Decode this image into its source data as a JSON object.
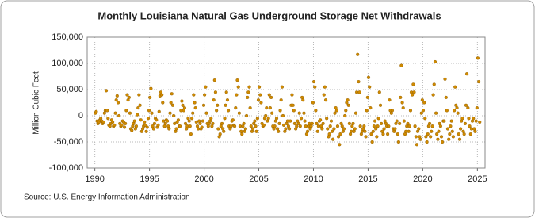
{
  "chart_data": {
    "type": "scatter",
    "title": "Monthly Louisiana Natural Gas Underground Storage Net Withdrawals",
    "y_label": "Million Cubic Feet",
    "source": "Source: U.S. Energy Information Administration",
    "xlim": [
      1989.3,
      2025.7
    ],
    "xticks": [
      1990,
      1995,
      2000,
      2005,
      2010,
      2015,
      2020,
      2025
    ],
    "ylim": [
      -100000,
      150000
    ],
    "yticks": [
      {
        "value": -100000,
        "label": "-100,000"
      },
      {
        "value": -50000,
        "label": "-50,000"
      },
      {
        "value": 0,
        "label": "0"
      },
      {
        "value": 50000,
        "label": "50,000"
      },
      {
        "value": 100000,
        "label": "100,000"
      },
      {
        "value": 150000,
        "label": "150,000"
      }
    ],
    "grid": true,
    "x": [
      1990.04,
      1990.13,
      1990.21,
      1990.29,
      1990.38,
      1990.46,
      1990.54,
      1990.63,
      1990.71,
      1990.79,
      1990.88,
      1990.96,
      1991.04,
      1991.13,
      1991.21,
      1991.29,
      1991.38,
      1991.46,
      1991.54,
      1991.63,
      1991.71,
      1991.79,
      1991.88,
      1991.96,
      1992.04,
      1992.13,
      1992.21,
      1992.29,
      1992.38,
      1992.46,
      1992.54,
      1992.63,
      1992.71,
      1992.79,
      1992.88,
      1992.96,
      1993.04,
      1993.13,
      1993.21,
      1993.29,
      1993.38,
      1993.46,
      1993.54,
      1993.63,
      1993.71,
      1993.79,
      1993.88,
      1993.96,
      1994.04,
      1994.13,
      1994.21,
      1994.29,
      1994.38,
      1994.46,
      1994.54,
      1994.63,
      1994.71,
      1994.79,
      1994.88,
      1994.96,
      1995.04,
      1995.13,
      1995.21,
      1995.29,
      1995.38,
      1995.46,
      1995.54,
      1995.63,
      1995.71,
      1995.79,
      1995.88,
      1995.96,
      1996.04,
      1996.13,
      1996.21,
      1996.29,
      1996.38,
      1996.46,
      1996.54,
      1996.63,
      1996.71,
      1996.79,
      1996.88,
      1996.96,
      1997.04,
      1997.13,
      1997.21,
      1997.29,
      1997.38,
      1997.46,
      1997.54,
      1997.63,
      1997.71,
      1997.79,
      1997.88,
      1997.96,
      1998.04,
      1998.13,
      1998.21,
      1998.29,
      1998.38,
      1998.46,
      1998.54,
      1998.63,
      1998.71,
      1998.79,
      1998.88,
      1998.96,
      1999.04,
      1999.13,
      1999.21,
      1999.29,
      1999.38,
      1999.46,
      1999.54,
      1999.63,
      1999.71,
      1999.79,
      1999.88,
      1999.96,
      2000.04,
      2000.13,
      2000.21,
      2000.29,
      2000.38,
      2000.46,
      2000.54,
      2000.63,
      2000.71,
      2000.79,
      2000.88,
      2000.96,
      2001.04,
      2001.13,
      2001.21,
      2001.29,
      2001.38,
      2001.46,
      2001.54,
      2001.63,
      2001.71,
      2001.79,
      2001.88,
      2001.96,
      2002.04,
      2002.13,
      2002.21,
      2002.29,
      2002.38,
      2002.46,
      2002.54,
      2002.63,
      2002.71,
      2002.79,
      2002.88,
      2002.96,
      2003.04,
      2003.13,
      2003.21,
      2003.29,
      2003.38,
      2003.46,
      2003.54,
      2003.63,
      2003.71,
      2003.79,
      2003.88,
      2003.96,
      2004.04,
      2004.13,
      2004.21,
      2004.29,
      2004.38,
      2004.46,
      2004.54,
      2004.63,
      2004.71,
      2004.79,
      2004.88,
      2004.96,
      2005.04,
      2005.13,
      2005.21,
      2005.29,
      2005.38,
      2005.46,
      2005.54,
      2005.63,
      2005.71,
      2005.79,
      2005.88,
      2005.96,
      2006.04,
      2006.13,
      2006.21,
      2006.29,
      2006.38,
      2006.46,
      2006.54,
      2006.63,
      2006.71,
      2006.79,
      2006.88,
      2006.96,
      2007.04,
      2007.13,
      2007.21,
      2007.29,
      2007.38,
      2007.46,
      2007.54,
      2007.63,
      2007.71,
      2007.79,
      2007.88,
      2007.96,
      2008.04,
      2008.13,
      2008.21,
      2008.29,
      2008.38,
      2008.46,
      2008.54,
      2008.63,
      2008.71,
      2008.79,
      2008.88,
      2008.96,
      2009.04,
      2009.13,
      2009.21,
      2009.29,
      2009.38,
      2009.46,
      2009.54,
      2009.63,
      2009.71,
      2009.79,
      2009.88,
      2009.96,
      2010.04,
      2010.13,
      2010.21,
      2010.29,
      2010.38,
      2010.46,
      2010.54,
      2010.63,
      2010.71,
      2010.79,
      2010.88,
      2010.96,
      2011.04,
      2011.13,
      2011.21,
      2011.29,
      2011.38,
      2011.46,
      2011.54,
      2011.63,
      2011.71,
      2011.79,
      2011.88,
      2011.96,
      2012.04,
      2012.13,
      2012.21,
      2012.29,
      2012.38,
      2012.46,
      2012.54,
      2012.63,
      2012.71,
      2012.79,
      2012.88,
      2012.96,
      2013.04,
      2013.13,
      2013.21,
      2013.29,
      2013.38,
      2013.46,
      2013.54,
      2013.63,
      2013.71,
      2013.79,
      2013.88,
      2013.96,
      2014.04,
      2014.13,
      2014.21,
      2014.29,
      2014.38,
      2014.46,
      2014.54,
      2014.63,
      2014.71,
      2014.79,
      2014.88,
      2014.96,
      2015.04,
      2015.13,
      2015.21,
      2015.29,
      2015.38,
      2015.46,
      2015.54,
      2015.63,
      2015.71,
      2015.79,
      2015.88,
      2015.96,
      2016.04,
      2016.13,
      2016.21,
      2016.29,
      2016.38,
      2016.46,
      2016.54,
      2016.63,
      2016.71,
      2016.79,
      2016.88,
      2016.96,
      2017.04,
      2017.13,
      2017.21,
      2017.29,
      2017.38,
      2017.46,
      2017.54,
      2017.63,
      2017.71,
      2017.79,
      2017.88,
      2017.96,
      2018.04,
      2018.13,
      2018.21,
      2018.29,
      2018.38,
      2018.46,
      2018.54,
      2018.63,
      2018.71,
      2018.79,
      2018.88,
      2018.96,
      2019.04,
      2019.13,
      2019.21,
      2019.29,
      2019.38,
      2019.46,
      2019.54,
      2019.63,
      2019.71,
      2019.79,
      2019.88,
      2019.96,
      2020.04,
      2020.13,
      2020.21,
      2020.29,
      2020.38,
      2020.46,
      2020.54,
      2020.63,
      2020.71,
      2020.79,
      2020.88,
      2020.96,
      2021.04,
      2021.13,
      2021.21,
      2021.29,
      2021.38,
      2021.46,
      2021.54,
      2021.63,
      2021.71,
      2021.79,
      2021.88,
      2021.96,
      2022.04,
      2022.13,
      2022.21,
      2022.29,
      2022.38,
      2022.46,
      2022.54,
      2022.63,
      2022.71,
      2022.79,
      2022.88,
      2022.96,
      2023.04,
      2023.13,
      2023.21,
      2023.29,
      2023.38,
      2023.46,
      2023.54,
      2023.63,
      2023.71,
      2023.79,
      2023.88,
      2023.96,
      2024.04,
      2024.13,
      2024.21,
      2024.29,
      2024.38,
      2024.46,
      2024.54,
      2024.63,
      2024.71,
      2024.79,
      2024.88,
      2024.96,
      2025.04,
      2025.13,
      2025.21
    ],
    "series": [
      {
        "color": "#d08a00",
        "values": [
          5000,
          8000,
          -10000,
          -15000,
          -12000,
          -8000,
          -5000,
          -10000,
          -15000,
          -12000,
          5000,
          10000,
          48000,
          10000,
          -5000,
          -18000,
          -20000,
          -15000,
          -8000,
          -12000,
          -20000,
          -18000,
          5000,
          30000,
          38000,
          25000,
          0,
          -15000,
          -20000,
          -18000,
          -10000,
          -12000,
          -22000,
          -15000,
          10000,
          40000,
          30000,
          35000,
          5000,
          -25000,
          -28000,
          -20000,
          -15000,
          -10000,
          -25000,
          -20000,
          2000,
          15000,
          40000,
          20000,
          -8000,
          -30000,
          -25000,
          -20000,
          -12000,
          -18000,
          -30000,
          -22000,
          -5000,
          10000,
          35000,
          52000,
          5000,
          -20000,
          -25000,
          -15000,
          -5000,
          -8000,
          -22000,
          -18000,
          8000,
          38000,
          45000,
          40000,
          25000,
          -10000,
          -20000,
          -15000,
          -8000,
          -10000,
          -20000,
          -25000,
          5000,
          25000,
          42000,
          20000,
          0,
          -15000,
          -30000,
          -25000,
          -12000,
          -8000,
          -20000,
          -20000,
          10000,
          28000,
          20000,
          10000,
          15000,
          -15000,
          -25000,
          -20000,
          -5000,
          -10000,
          -20000,
          -35000,
          -5000,
          5000,
          40000,
          25000,
          15000,
          -12000,
          -20000,
          -25000,
          -10000,
          -15000,
          -25000,
          -22000,
          -10000,
          20000,
          40000,
          55000,
          5000,
          -15000,
          -20000,
          -15000,
          -10000,
          -5000,
          -20000,
          -15000,
          30000,
          68000,
          45000,
          10000,
          20000,
          -25000,
          -40000,
          -35000,
          -20000,
          -15000,
          -25000,
          -30000,
          -5000,
          20000,
          45000,
          30000,
          10000,
          -20000,
          -25000,
          -20000,
          -10000,
          -8000,
          -18000,
          -20000,
          15000,
          40000,
          68000,
          55000,
          5000,
          -20000,
          -30000,
          -35000,
          -20000,
          -15000,
          -30000,
          -25000,
          0,
          35000,
          45000,
          55000,
          15000,
          -20000,
          -30000,
          -25000,
          -15000,
          -10000,
          -20000,
          -30000,
          -5000,
          30000,
          55000,
          40000,
          25000,
          -15000,
          -20000,
          -18000,
          -5000,
          0,
          15000,
          -10000,
          -5000,
          40000,
          15000,
          35000,
          5000,
          -20000,
          -25000,
          -20000,
          -10000,
          -5000,
          -25000,
          -30000,
          -15000,
          10000,
          30000,
          55000,
          0,
          -18000,
          -30000,
          -25000,
          -15000,
          -10000,
          -20000,
          -25000,
          -10000,
          20000,
          40000,
          20000,
          10000,
          -15000,
          -25000,
          -20000,
          -10000,
          -15000,
          5000,
          -20000,
          -5000,
          35000,
          30000,
          5000,
          -10000,
          -20000,
          -35000,
          -30000,
          -20000,
          -15000,
          -25000,
          -20000,
          -15000,
          25000,
          65000,
          55000,
          10000,
          -15000,
          -30000,
          -20000,
          -10000,
          -8000,
          -20000,
          -25000,
          -15000,
          40000,
          55000,
          30000,
          -5000,
          -25000,
          -40000,
          -35000,
          -20000,
          -10000,
          -30000,
          -45000,
          -25000,
          5000,
          15000,
          10000,
          -20000,
          -40000,
          -55000,
          -35000,
          -15000,
          -20000,
          -30000,
          -25000,
          0,
          10000,
          25000,
          30000,
          20000,
          -15000,
          -35000,
          -30000,
          -20000,
          -15000,
          -30000,
          -25000,
          5000,
          45000,
          117000,
          65000,
          45000,
          -20000,
          -35000,
          -30000,
          -25000,
          -20000,
          -30000,
          -40000,
          10000,
          35000,
          73000,
          55000,
          15000,
          -35000,
          -50000,
          -30000,
          -20000,
          -10000,
          -25000,
          -40000,
          -20000,
          -5000,
          45000,
          20000,
          -15000,
          -30000,
          -35000,
          -25000,
          -10000,
          -15000,
          -20000,
          -35000,
          -20000,
          30000,
          10000,
          5000,
          10000,
          -25000,
          -30000,
          -25000,
          -15000,
          -10000,
          -35000,
          -50000,
          -15000,
          35000,
          96000,
          25000,
          15000,
          -10000,
          -35000,
          -30000,
          -20000,
          -15000,
          -30000,
          -20000,
          10000,
          45000,
          40000,
          60000,
          45000,
          -20000,
          -40000,
          -55000,
          -30000,
          -25000,
          -40000,
          -45000,
          5000,
          30000,
          10000,
          25000,
          -5000,
          -40000,
          -50000,
          -35000,
          -20000,
          -15000,
          -40000,
          -30000,
          -20000,
          40000,
          60000,
          103000,
          5000,
          -35000,
          -45000,
          -30000,
          -15000,
          -20000,
          -40000,
          -50000,
          -10000,
          -10000,
          70000,
          35000,
          10000,
          -25000,
          -45000,
          -35000,
          -20000,
          -10000,
          -30000,
          -40000,
          10000,
          55000,
          20000,
          15000,
          5000,
          -35000,
          -45000,
          -25000,
          -10000,
          -5000,
          -30000,
          -35000,
          -15000,
          20000,
          80000,
          15000,
          -5000,
          -20000,
          -35000,
          -25000,
          -10000,
          -5000,
          -25000,
          -30000,
          -10000,
          15000,
          110000,
          65000,
          -12000
        ]
      }
    ]
  }
}
